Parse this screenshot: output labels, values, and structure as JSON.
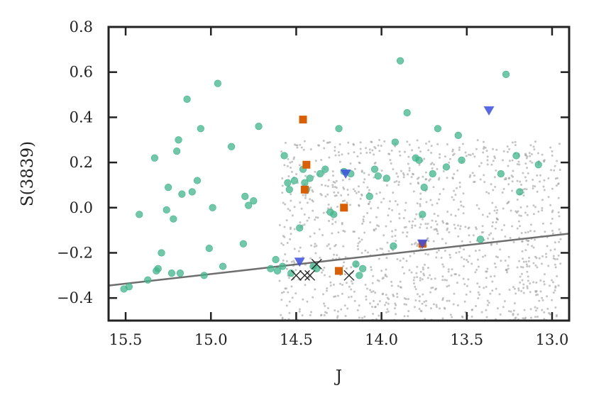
{
  "chart_data": {
    "type": "scatter",
    "title": "",
    "xlabel": "J",
    "ylabel": "S(3839)",
    "xlim": [
      15.6,
      12.9
    ],
    "ylim": [
      -0.5,
      0.8
    ],
    "x_reversed": true,
    "xticks": [
      15.5,
      15.0,
      14.5,
      14.0,
      13.5,
      13.0
    ],
    "xtick_labels": [
      "15.5",
      "15.0",
      "14.5",
      "14.0",
      "13.5",
      "13.0"
    ],
    "yticks": [
      -0.4,
      -0.2,
      0.0,
      0.2,
      0.4,
      0.6,
      0.8
    ],
    "ytick_labels": [
      "−0.4",
      "−0.2",
      "0.0",
      "0.2",
      "0.4",
      "0.6",
      "0.8"
    ],
    "grid": false,
    "legend": "none",
    "colors": {
      "background_points": "#9e9e9e",
      "green_circles": "#3fb58a",
      "orange_squares": "#d95f02",
      "blue_triangles": "#3b4fe0",
      "black_crosses": "#222222",
      "fit_line": "#6e6e6e"
    },
    "background_points": {
      "count": 1200,
      "x_range": [
        12.95,
        14.6
      ],
      "y_range": [
        -0.5,
        0.3
      ],
      "seed": 7
    },
    "line": {
      "x": [
        15.6,
        12.9
      ],
      "y": [
        -0.345,
        -0.115
      ]
    },
    "series": [
      {
        "marker": "circle",
        "color": "#3fb58a",
        "x": [
          15.51,
          15.48,
          15.42,
          15.37,
          15.33,
          15.32,
          15.31,
          15.29,
          15.26,
          15.25,
          15.23,
          15.22,
          15.2,
          15.19,
          15.18,
          15.17,
          15.14,
          15.11,
          15.08,
          15.06,
          15.04,
          15.01,
          14.99,
          14.96,
          14.93,
          14.88,
          14.81,
          14.8,
          14.78,
          14.75,
          14.72,
          14.65,
          14.62,
          14.61,
          14.58,
          14.57,
          14.55,
          14.54,
          14.53,
          14.51,
          14.48,
          14.46,
          14.45,
          14.44,
          14.42,
          14.4,
          14.38,
          14.36,
          14.33,
          14.3,
          14.28,
          14.25,
          14.22,
          14.18,
          14.15,
          14.13,
          14.11,
          14.07,
          14.04,
          14.02,
          13.97,
          13.93,
          13.92,
          13.89,
          13.85,
          13.8,
          13.78,
          13.76,
          13.75,
          13.7,
          13.67,
          13.62,
          13.55,
          13.53,
          13.42,
          13.3,
          13.27,
          13.21,
          13.19,
          13.08
        ],
        "y": [
          -0.36,
          -0.35,
          -0.03,
          -0.32,
          0.22,
          -0.28,
          -0.27,
          -0.2,
          -0.01,
          0.09,
          -0.29,
          -0.05,
          0.25,
          0.3,
          -0.29,
          0.06,
          0.48,
          0.07,
          0.12,
          0.35,
          -0.3,
          -0.18,
          0.0,
          0.55,
          -0.26,
          0.27,
          -0.16,
          0.05,
          0.01,
          0.03,
          0.36,
          -0.27,
          -0.23,
          -0.28,
          -0.26,
          0.23,
          0.11,
          0.08,
          -0.29,
          0.12,
          -0.09,
          0.17,
          0.11,
          0.08,
          0.13,
          -0.26,
          -0.27,
          0.15,
          0.17,
          -0.02,
          -0.03,
          0.35,
          0.16,
          0.15,
          -0.25,
          -0.3,
          -0.27,
          0.05,
          0.17,
          0.14,
          0.13,
          -0.17,
          0.29,
          0.65,
          0.42,
          0.22,
          0.21,
          -0.03,
          0.09,
          0.15,
          0.35,
          0.18,
          0.32,
          0.21,
          -0.14,
          0.15,
          0.59,
          0.23,
          0.07,
          0.19
        ]
      },
      {
        "marker": "square",
        "color": "#d95f02",
        "x": [
          14.46,
          14.44,
          14.45,
          14.22,
          14.25,
          13.76
        ],
        "y": [
          0.39,
          0.19,
          0.08,
          0.0,
          -0.28,
          -0.16
        ]
      },
      {
        "marker": "triangle-down",
        "color": "#3b4fe0",
        "x": [
          14.48,
          14.21,
          13.76,
          13.37
        ],
        "y": [
          -0.24,
          0.15,
          -0.16,
          0.43
        ]
      },
      {
        "marker": "x",
        "color": "#222222",
        "x": [
          14.5,
          14.45,
          14.42,
          14.38,
          14.19
        ],
        "y": [
          -0.3,
          -0.3,
          -0.3,
          -0.25,
          -0.3
        ]
      }
    ]
  }
}
